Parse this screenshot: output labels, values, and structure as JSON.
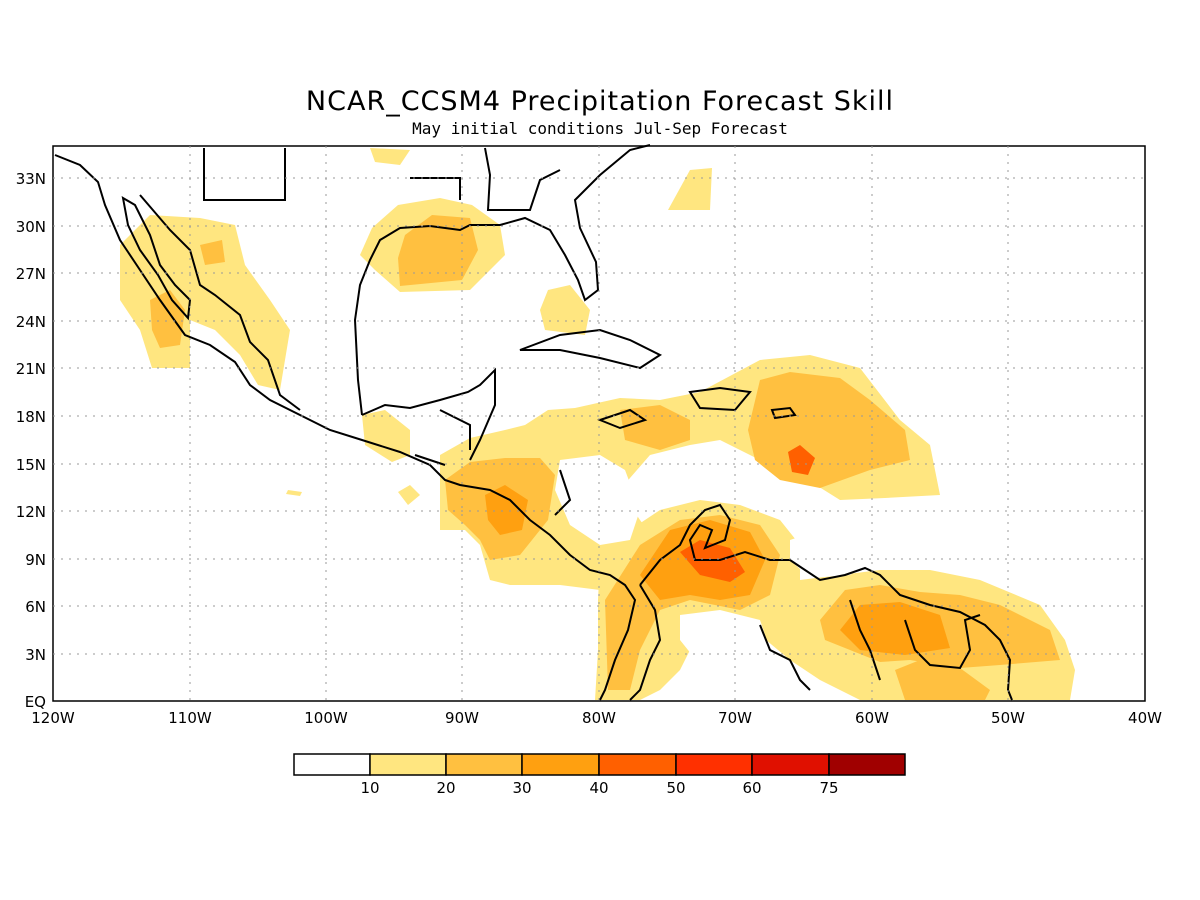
{
  "title": "NCAR_CCSM4 Precipitation Forecast Skill",
  "subtitle": "May initial conditions  Jul-Sep Forecast",
  "map": {
    "lat_labels": [
      "EQ",
      "3N",
      "6N",
      "9N",
      "12N",
      "15N",
      "18N",
      "21N",
      "24N",
      "27N",
      "30N",
      "33N"
    ],
    "lon_labels": [
      "120W",
      "110W",
      "100W",
      "90W",
      "80W",
      "70W",
      "60W",
      "50W",
      "40W"
    ],
    "lon_range": [
      -120,
      -40
    ],
    "lat_range": [
      0,
      35
    ],
    "grid": true,
    "grid_style": "dotted"
  },
  "colorbar": {
    "colors": [
      "#ffffff",
      "#ffe680",
      "#ffc040",
      "#ffa010",
      "#ff6000",
      "#ff3000",
      "#e01000",
      "#a00000"
    ],
    "labels": [
      "10",
      "20",
      "30",
      "40",
      "50",
      "60",
      "75"
    ]
  }
}
